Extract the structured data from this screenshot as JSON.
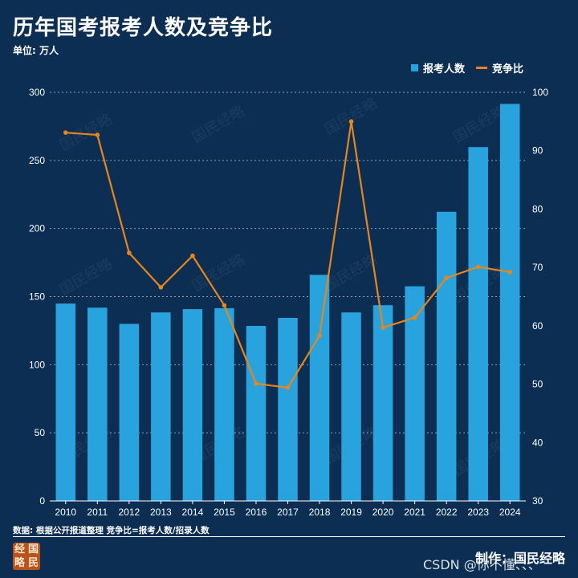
{
  "title": "历年国考报考人数及竞争比",
  "unit_label": "单位: 万人",
  "legend": {
    "bar_label": "报考人数",
    "line_label": "竞争比"
  },
  "footer_note": "数据: 根据公开报道整理  竞争比=报考人数/招录人数",
  "seal_chars": [
    "经",
    "国",
    "略",
    "民"
  ],
  "maker": "制作：国民经略",
  "watermark_text": "国民经略",
  "csdn_overlay": "CSDN @你不懂、、、",
  "colors": {
    "background": "#0b2e52",
    "bar": "#29a3dd",
    "line": "#e8851c",
    "text": "#ffffff",
    "seal": "#b8531c"
  },
  "chart_data": {
    "type": "bar",
    "title": "历年国考报考人数及竞争比",
    "categories": [
      "2010",
      "2011",
      "2012",
      "2013",
      "2014",
      "2015",
      "2016",
      "2017",
      "2018",
      "2019",
      "2020",
      "2021",
      "2022",
      "2023",
      "2024"
    ],
    "xlabel": "",
    "ylabel": "万人",
    "y_left": {
      "min": 0,
      "max": 300,
      "ticks": [
        0,
        50,
        100,
        150,
        200,
        250,
        300
      ]
    },
    "y_right": {
      "min": 30,
      "max": 100,
      "ticks": [
        30,
        40,
        50,
        60,
        70,
        80,
        90,
        100
      ]
    },
    "grid": "dotted-horizontal",
    "legend_position": "top-right",
    "series": [
      {
        "name": "报考人数",
        "type": "bar",
        "axis": "left",
        "values": [
          144.9,
          141.9,
          130.0,
          138.4,
          140.8,
          141.5,
          128.5,
          134.4,
          166.0,
          138.4,
          143.7,
          157.6,
          212.3,
          259.8,
          291.5
        ]
      },
      {
        "name": "竞争比",
        "type": "line",
        "axis": "right",
        "values": [
          93.1,
          92.7,
          72.5,
          66.6,
          72.0,
          63.5,
          50.1,
          49.4,
          58.3,
          95.0,
          59.7,
          61.4,
          68.2,
          70.1,
          69.2
        ]
      }
    ]
  }
}
